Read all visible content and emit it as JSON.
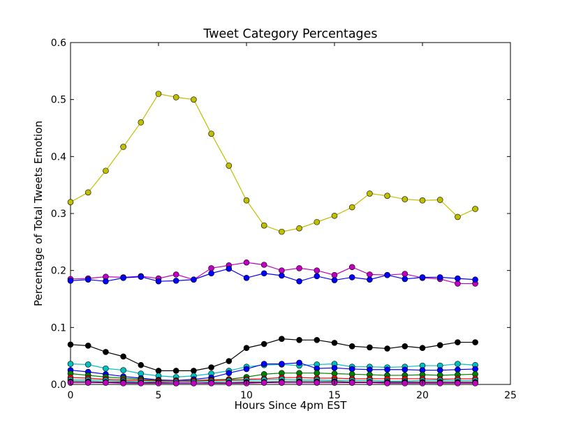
{
  "chart_data": {
    "type": "line",
    "title": "Tweet Category Percentages",
    "xlabel": "Hours Since 4pm EST",
    "ylabel": "Percentage of Total Tweets Emotion",
    "xlim": [
      0,
      25
    ],
    "ylim": [
      0,
      0.6
    ],
    "xticks": [
      0,
      5,
      10,
      15,
      20,
      25
    ],
    "xtick_labels": [
      "0",
      "5",
      "10",
      "15",
      "20",
      "25"
    ],
    "yticks": [
      0.0,
      0.1,
      0.2,
      0.3,
      0.4,
      0.5,
      0.6
    ],
    "ytick_labels": [
      "0.0",
      "0.1",
      "0.2",
      "0.3",
      "0.4",
      "0.5",
      "0.6"
    ],
    "grid": false,
    "legend": "none",
    "x": [
      0,
      1,
      2,
      3,
      4,
      5,
      6,
      7,
      8,
      9,
      10,
      11,
      12,
      13,
      14,
      15,
      16,
      17,
      18,
      19,
      20,
      21,
      22,
      23
    ],
    "series": [
      {
        "color": "#bfbf00",
        "values": [
          0.32,
          0.337,
          0.375,
          0.417,
          0.46,
          0.51,
          0.504,
          0.5,
          0.44,
          0.384,
          0.323,
          0.279,
          0.268,
          0.274,
          0.285,
          0.296,
          0.311,
          0.335,
          0.331,
          0.325,
          0.323,
          0.324,
          0.294,
          0.308
        ]
      },
      {
        "color": "#bf00bf",
        "values": [
          0.185,
          0.186,
          0.189,
          0.188,
          0.19,
          0.186,
          0.193,
          0.184,
          0.204,
          0.209,
          0.214,
          0.21,
          0.2,
          0.204,
          0.2,
          0.192,
          0.206,
          0.193,
          0.192,
          0.194,
          0.187,
          0.185,
          0.177,
          0.177
        ]
      },
      {
        "color": "#0000ff",
        "values": [
          0.182,
          0.184,
          0.181,
          0.187,
          0.189,
          0.181,
          0.182,
          0.184,
          0.195,
          0.203,
          0.187,
          0.195,
          0.191,
          0.181,
          0.19,
          0.183,
          0.188,
          0.184,
          0.192,
          0.185,
          0.188,
          0.188,
          0.186,
          0.184
        ]
      },
      {
        "color": "#000000",
        "values": [
          0.07,
          0.068,
          0.057,
          0.049,
          0.034,
          0.024,
          0.024,
          0.024,
          0.03,
          0.041,
          0.064,
          0.071,
          0.08,
          0.078,
          0.078,
          0.073,
          0.067,
          0.065,
          0.063,
          0.067,
          0.064,
          0.069,
          0.074,
          0.074
        ]
      },
      {
        "color": "#00bfbf",
        "values": [
          0.036,
          0.035,
          0.028,
          0.025,
          0.019,
          0.015,
          0.013,
          0.015,
          0.019,
          0.024,
          0.031,
          0.034,
          0.035,
          0.033,
          0.035,
          0.036,
          0.031,
          0.031,
          0.03,
          0.031,
          0.033,
          0.033,
          0.036,
          0.034
        ]
      },
      {
        "color": "#0000ff",
        "values": [
          0.025,
          0.022,
          0.018,
          0.014,
          0.011,
          0.008,
          0.007,
          0.009,
          0.012,
          0.02,
          0.027,
          0.036,
          0.036,
          0.038,
          0.028,
          0.029,
          0.027,
          0.026,
          0.026,
          0.026,
          0.025,
          0.025,
          0.026,
          0.027
        ]
      },
      {
        "color": "#008000",
        "values": [
          0.019,
          0.016,
          0.013,
          0.011,
          0.009,
          0.007,
          0.006,
          0.007,
          0.008,
          0.009,
          0.013,
          0.018,
          0.02,
          0.02,
          0.02,
          0.019,
          0.018,
          0.017,
          0.016,
          0.016,
          0.017,
          0.016,
          0.017,
          0.018
        ]
      },
      {
        "color": "#ff0000",
        "values": [
          0.012,
          0.011,
          0.009,
          0.008,
          0.007,
          0.006,
          0.006,
          0.006,
          0.007,
          0.008,
          0.009,
          0.01,
          0.012,
          0.012,
          0.011,
          0.011,
          0.01,
          0.01,
          0.01,
          0.01,
          0.01,
          0.009,
          0.01,
          0.01
        ]
      },
      {
        "color": "#00bfbf",
        "values": [
          0.008,
          0.008,
          0.007,
          0.006,
          0.005,
          0.004,
          0.004,
          0.004,
          0.005,
          0.006,
          0.007,
          0.008,
          0.009,
          0.008,
          0.008,
          0.007,
          0.007,
          0.007,
          0.006,
          0.006,
          0.007,
          0.007,
          0.007,
          0.007
        ]
      },
      {
        "color": "#000000",
        "values": [
          0.005,
          0.005,
          0.004,
          0.004,
          0.003,
          0.003,
          0.002,
          0.002,
          0.003,
          0.003,
          0.004,
          0.004,
          0.005,
          0.005,
          0.005,
          0.005,
          0.004,
          0.004,
          0.004,
          0.004,
          0.004,
          0.004,
          0.004,
          0.004
        ]
      },
      {
        "color": "#bf00bf",
        "values": [
          0.003,
          0.003,
          0.003,
          0.002,
          0.002,
          0.002,
          0.002,
          0.002,
          0.002,
          0.002,
          0.002,
          0.003,
          0.003,
          0.003,
          0.003,
          0.003,
          0.003,
          0.003,
          0.002,
          0.002,
          0.002,
          0.002,
          0.002,
          0.002
        ]
      }
    ]
  }
}
